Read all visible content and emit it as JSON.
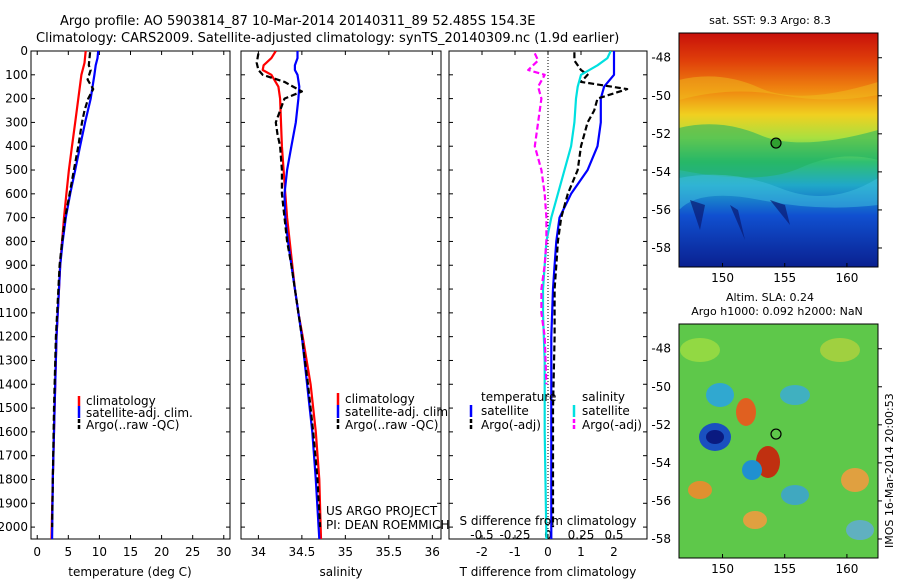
{
  "header": {
    "line1": "Argo profile: AO 5903814_87 10-Mar-2014 20140311_89 52.485S 154.3E",
    "line2": "Climatology: CARS2009. Satellite-adjusted climatology: synTS_20140309.nc (1.9d earlier)"
  },
  "credits": {
    "project": "US ARGO PROJECT",
    "pi": "PI: DEAN ROEMMICH",
    "stamp": "IMOS 16-Mar-2014 20:00:53"
  },
  "colors": {
    "climatology": "#ff0000",
    "satellite": "#0000ff",
    "argo": "#000000",
    "sal_satellite": "#00e0e0",
    "sal_argo": "#ff00ff"
  },
  "chart_data": [
    {
      "type": "line",
      "xlabel": "temperature (deg C)",
      "ylabel": "",
      "xlim": [
        -1,
        31
      ],
      "ylim": [
        2050,
        0
      ],
      "xticks": [
        0,
        5,
        10,
        15,
        20,
        25,
        30
      ],
      "yticks": [
        0,
        100,
        200,
        300,
        400,
        500,
        600,
        700,
        800,
        900,
        1000,
        1100,
        1200,
        1300,
        1400,
        1500,
        1600,
        1700,
        1800,
        1900,
        2000
      ],
      "legend": [
        "climatology",
        "satellite-adj. clim.",
        "Argo(..raw -QC)"
      ],
      "series": [
        {
          "name": "climatology",
          "y": [
            0,
            50,
            100,
            200,
            300,
            400,
            500,
            600,
            700,
            800,
            900,
            1000,
            1200,
            1500,
            1800,
            2050
          ],
          "x": [
            7.8,
            7.6,
            7.1,
            6.6,
            6.1,
            5.6,
            5.1,
            4.7,
            4.3,
            4.0,
            3.7,
            3.5,
            3.1,
            2.8,
            2.5,
            2.3
          ]
        },
        {
          "name": "satellite-adj. clim.",
          "y": [
            0,
            30,
            60,
            100,
            200,
            300,
            400,
            500,
            600,
            700,
            800,
            900,
            1000,
            1200,
            1500,
            1800,
            2050
          ],
          "x": [
            9.8,
            9.7,
            9.4,
            9.2,
            8.6,
            7.7,
            6.9,
            6.1,
            5.3,
            4.6,
            4.1,
            3.7,
            3.5,
            3.1,
            2.8,
            2.5,
            2.4
          ]
        },
        {
          "name": "Argo(..raw -QC)",
          "y": [
            5,
            30,
            60,
            80,
            120,
            160,
            200,
            250,
            300,
            400,
            500,
            600,
            700,
            800,
            900,
            1000,
            1200,
            1500,
            1800,
            2000
          ],
          "x": [
            8.5,
            8.4,
            8.3,
            8.6,
            8.1,
            9.0,
            8.2,
            7.6,
            7.2,
            6.6,
            5.9,
            5.2,
            4.5,
            4.0,
            3.6,
            3.4,
            3.0,
            2.7,
            2.5,
            2.4
          ]
        }
      ]
    },
    {
      "type": "line",
      "xlabel": "salinity",
      "ylabel": "",
      "xlim": [
        33.8,
        36.1
      ],
      "ylim": [
        2050,
        0
      ],
      "xticks": [
        34,
        34.5,
        35,
        35.5,
        36
      ],
      "legend": [
        "climatology",
        "satellite-adj. clim.",
        "Argo(..raw -QC)"
      ],
      "series": [
        {
          "name": "climatology",
          "y": [
            0,
            30,
            60,
            80,
            100,
            150,
            200,
            300,
            400,
            500,
            600,
            700,
            800,
            900,
            1000,
            1100,
            1200,
            1400,
            1600,
            1800,
            2050
          ],
          "x": [
            34.2,
            34.15,
            34.06,
            34.05,
            34.15,
            34.23,
            34.25,
            34.26,
            34.27,
            34.29,
            34.31,
            34.33,
            34.36,
            34.39,
            34.42,
            34.46,
            34.51,
            34.6,
            34.66,
            34.7,
            34.72
          ]
        },
        {
          "name": "satellite-adj. clim.",
          "y": [
            0,
            30,
            60,
            80,
            100,
            150,
            200,
            300,
            400,
            500,
            600,
            700,
            800,
            900,
            1000,
            1100,
            1200,
            1400,
            1600,
            1800,
            2050
          ],
          "x": [
            34.45,
            34.45,
            34.42,
            34.42,
            34.45,
            34.47,
            34.46,
            34.43,
            34.38,
            34.33,
            34.3,
            34.31,
            34.34,
            34.38,
            34.42,
            34.46,
            34.5,
            34.56,
            34.62,
            34.66,
            34.7
          ]
        },
        {
          "name": "Argo(..raw -QC)",
          "y": [
            10,
            50,
            80,
            100,
            130,
            170,
            200,
            250,
            300,
            350,
            400,
            500,
            600,
            700,
            800,
            900,
            1000,
            1200,
            1400,
            1600,
            1800,
            2000
          ],
          "x": [
            34.0,
            33.98,
            34.0,
            34.05,
            34.3,
            34.5,
            34.3,
            34.25,
            34.2,
            34.22,
            34.25,
            34.27,
            34.27,
            34.3,
            34.33,
            34.38,
            34.42,
            34.5,
            34.57,
            34.63,
            34.68,
            34.71
          ]
        }
      ]
    },
    {
      "type": "line",
      "xlabel": "T difference from climatology",
      "xlabel2": "S difference from climatology",
      "xlim": [
        -3.0,
        3.0
      ],
      "ylim": [
        2050,
        0
      ],
      "xticks": [
        -2,
        -1,
        0,
        1,
        2
      ],
      "xticks_s": [
        "-0.5",
        "-0.25",
        "0",
        "0.25",
        "0.5"
      ],
      "legend_titles": [
        "temperature",
        "salinity"
      ],
      "legend": [
        "satellite",
        "Argo(-adj)",
        "satellite",
        "Argo(-adj)"
      ],
      "series": [
        {
          "name": "satellite",
          "y": [
            0,
            30,
            60,
            100,
            150,
            200,
            300,
            400,
            500,
            600,
            700,
            800,
            900,
            1000,
            1200,
            1500,
            1800,
            2050
          ],
          "x": [
            2.0,
            2.0,
            2.0,
            2.0,
            1.7,
            1.6,
            1.6,
            1.5,
            1.2,
            0.7,
            0.35,
            0.25,
            0.2,
            0.15,
            0.1,
            0.1,
            0.1,
            0.1
          ]
        },
        {
          "name": "Argo(-adj)",
          "y": [
            5,
            40,
            80,
            100,
            130,
            160,
            200,
            250,
            300,
            400,
            500,
            600,
            700,
            800,
            900,
            1000,
            1200,
            1500,
            1800,
            2000
          ],
          "x": [
            0.8,
            0.8,
            1.0,
            1.2,
            1.0,
            2.4,
            1.5,
            1.4,
            1.2,
            1.0,
            0.9,
            0.6,
            0.4,
            0.3,
            0.25,
            0.2,
            0.2,
            0.15,
            0.15,
            0.15
          ]
        },
        {
          "name": "satellite",
          "y": [
            0,
            30,
            60,
            100,
            150,
            200,
            300,
            400,
            500,
            600,
            700,
            800,
            900,
            1000,
            1100,
            1300,
            1600,
            2050
          ],
          "x": [
            1.9,
            1.8,
            1.5,
            1.0,
            0.9,
            0.85,
            0.8,
            0.7,
            0.5,
            0.3,
            0.1,
            -0.05,
            -0.1,
            -0.15,
            -0.15,
            -0.1,
            -0.1,
            -0.05
          ]
        },
        {
          "name": "Argo(-adj)",
          "y": [
            10,
            40,
            80,
            100,
            150,
            200,
            300,
            400,
            500,
            600,
            700,
            800,
            900,
            1000,
            1100,
            1200,
            1400
          ],
          "x": [
            -0.4,
            -0.3,
            -0.6,
            -0.1,
            -0.3,
            -0.2,
            -0.3,
            -0.4,
            -0.2,
            -0.1,
            -0.05,
            -0.05,
            -0.1,
            -0.2,
            -0.2,
            -0.1,
            -0.05
          ]
        }
      ]
    },
    {
      "type": "heatmap",
      "title": "sat. SST: 9.3 Argo: 8.3",
      "xticks": [
        150,
        155,
        160
      ],
      "yticks": [
        -48,
        -50,
        -52,
        -54,
        -56,
        -58
      ],
      "xlim": [
        146.5,
        162.5
      ],
      "ylim": [
        -59,
        -46.7
      ],
      "marker": {
        "lon": 154.3,
        "lat": -52.485
      }
    },
    {
      "type": "heatmap",
      "title": "Altim. SLA: 0.24",
      "title2": "Argo h1000: 0.092 h2000: NaN",
      "xticks": [
        150,
        155,
        160
      ],
      "yticks": [
        -48,
        -50,
        -52,
        -54,
        -56,
        -58
      ],
      "xlim": [
        146.5,
        162.5
      ],
      "ylim": [
        -59,
        -46.7
      ],
      "marker": {
        "lon": 154.3,
        "lat": -52.485
      }
    }
  ]
}
